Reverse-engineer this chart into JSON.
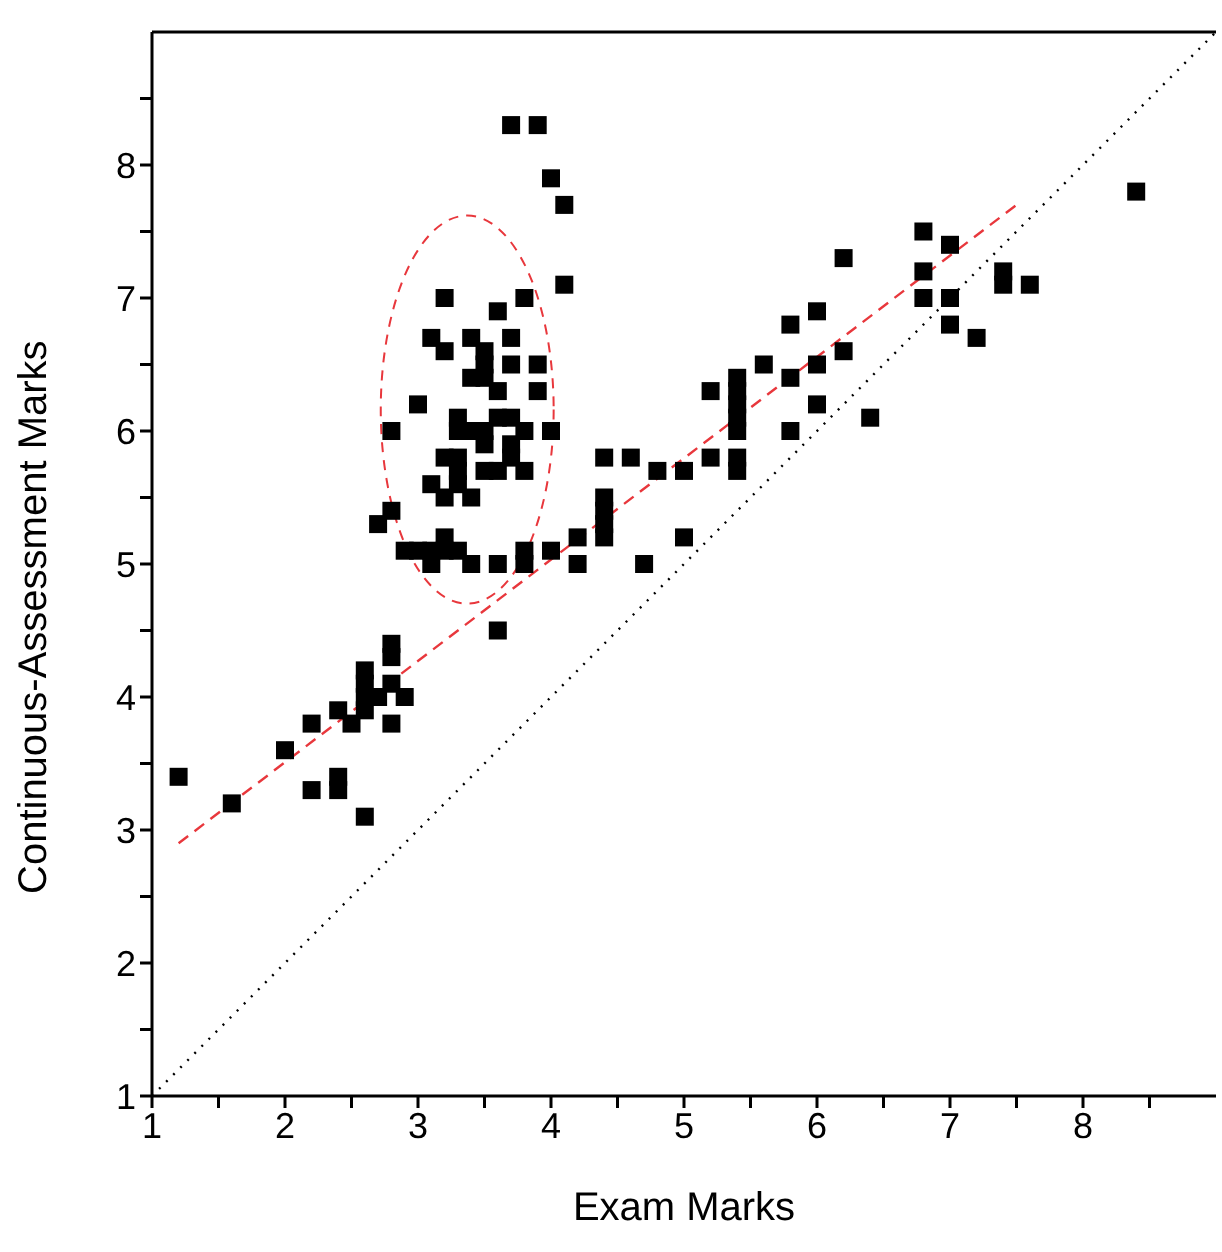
{
  "chart_data": {
    "type": "scatter",
    "xlabel": "Exam Marks",
    "ylabel": "Continuous-Assessment Marks",
    "xlim": [
      1,
      9
    ],
    "ylim": [
      1,
      9
    ],
    "xticks": [
      1,
      {
        "value": 1.5,
        "label": null
      },
      2,
      {
        "value": 2.5,
        "label": null
      },
      3,
      {
        "value": 3.5,
        "label": null
      },
      4,
      {
        "value": 4.5,
        "label": null
      },
      5,
      {
        "value": 5.5,
        "label": null
      },
      6,
      {
        "value": 6.5,
        "label": null
      },
      7,
      {
        "value": 7.5,
        "label": null
      },
      8,
      {
        "value": 8.5,
        "label": null
      }
    ],
    "yticks": [
      1,
      {
        "value": 1.5,
        "label": null
      },
      2,
      {
        "value": 2.5,
        "label": null
      },
      3,
      {
        "value": 3.5,
        "label": null
      },
      4,
      {
        "value": 4.5,
        "label": null
      },
      5,
      {
        "value": 5.5,
        "label": null
      },
      6,
      {
        "value": 6.5,
        "label": null
      },
      7,
      {
        "value": 7.5,
        "label": null
      },
      8,
      {
        "value": 8.5,
        "label": null
      }
    ],
    "marker": "square",
    "series": [
      {
        "color": "#000000",
        "x": [
          1.2,
          1.6,
          2.0,
          2.2,
          2.2,
          2.4,
          2.4,
          2.4,
          2.5,
          2.6,
          2.6,
          2.6,
          2.6,
          2.6,
          2.7,
          2.8,
          2.8,
          2.8,
          2.8,
          2.9,
          3.6,
          2.7,
          2.8,
          2.8,
          2.9,
          3.0,
          3.1,
          3.1,
          3.2,
          3.2,
          3.3,
          3.4,
          3.6,
          3.8,
          3.8,
          4.0,
          4.2,
          4.2,
          4.4,
          4.4,
          4.4,
          4.4,
          4.4,
          4.6,
          4.7,
          4.8,
          5.0,
          5.0,
          5.2,
          5.2,
          5.4,
          5.4,
          5.4,
          5.4,
          5.4,
          5.4,
          5.4,
          5.6,
          5.8,
          5.8,
          5.8,
          6.0,
          6.0,
          6.0,
          6.2,
          6.2,
          6.4,
          6.8,
          6.8,
          6.8,
          7.0,
          7.0,
          7.0,
          7.2,
          7.4,
          7.4,
          7.6,
          8.4,
          3.7,
          3.9,
          4.0,
          4.1,
          4.1,
          3.2,
          3.8,
          3.6,
          3.1,
          3.2,
          3.4,
          3.7,
          3.5,
          3.5,
          3.7,
          3.9,
          3.4,
          3.5,
          3.6,
          3.9,
          3.0,
          3.3,
          3.6,
          3.7,
          3.3,
          3.4,
          3.5,
          3.8,
          4.0,
          3.5,
          3.7,
          3.2,
          3.3,
          3.7,
          3.5,
          3.6,
          3.8,
          3.3,
          3.1,
          3.3,
          3.2,
          3.4
        ],
        "values": [
          3.4,
          3.2,
          3.6,
          3.8,
          3.3,
          3.9,
          3.4,
          3.3,
          3.8,
          3.1,
          4.2,
          4.1,
          4.0,
          3.9,
          4.0,
          4.4,
          4.3,
          4.1,
          3.8,
          4.0,
          4.5,
          5.3,
          5.4,
          6.0,
          5.1,
          5.1,
          5.0,
          5.1,
          5.2,
          5.1,
          5.1,
          5.0,
          5.0,
          5.1,
          5.0,
          5.1,
          5.2,
          5.0,
          5.5,
          5.4,
          5.3,
          5.2,
          5.8,
          5.8,
          5.0,
          5.7,
          5.7,
          5.2,
          5.8,
          6.3,
          6.4,
          6.3,
          6.2,
          6.1,
          6.0,
          5.8,
          5.7,
          6.5,
          6.8,
          6.4,
          6.0,
          6.9,
          6.5,
          6.2,
          7.3,
          6.6,
          6.1,
          7.5,
          7.2,
          7.0,
          7.4,
          7.0,
          6.8,
          6.7,
          7.2,
          7.1,
          7.1,
          7.8,
          8.3,
          8.3,
          7.9,
          7.7,
          7.1,
          7.0,
          7.0,
          6.9,
          6.7,
          6.6,
          6.7,
          6.7,
          6.6,
          6.5,
          6.5,
          6.5,
          6.4,
          6.4,
          6.3,
          6.3,
          6.2,
          6.1,
          6.1,
          6.1,
          6.0,
          6.0,
          6.0,
          6.0,
          6.0,
          5.9,
          5.9,
          5.8,
          5.8,
          5.8,
          5.7,
          5.7,
          5.7,
          5.7,
          5.6,
          5.6,
          5.5,
          5.5
        ]
      },
      {
        "type": "line",
        "color": "#e8373c",
        "line_style": "dashed",
        "marker": "none",
        "x": [
          1.2,
          7.5
        ],
        "values": [
          2.9,
          7.7
        ]
      },
      {
        "type": "line",
        "color": "#000000",
        "line_style": "dotted",
        "marker": "none",
        "x": [
          1,
          9
        ],
        "values": [
          1,
          9
        ]
      }
    ]
  }
}
